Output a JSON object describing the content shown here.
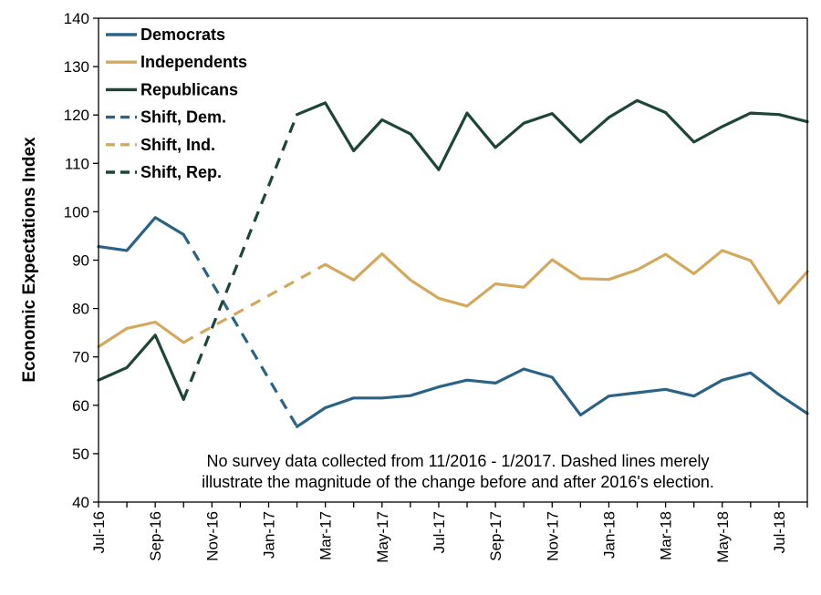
{
  "chart_data": {
    "type": "line",
    "ylabel": "Economic Expectations Index",
    "xlabel": "",
    "ylim": [
      40,
      140
    ],
    "yticks": [
      40,
      50,
      60,
      70,
      80,
      90,
      100,
      110,
      120,
      130,
      140
    ],
    "x": [
      "Jul-16",
      "Aug-16",
      "Sep-16",
      "Oct-16",
      "Nov-16",
      "Dec-16",
      "Jan-17",
      "Feb-17",
      "Mar-17",
      "Apr-17",
      "May-17",
      "Jun-17",
      "Jul-17",
      "Aug-17",
      "Sep-17",
      "Oct-17",
      "Nov-17",
      "Dec-17",
      "Jan-18",
      "Feb-18",
      "Mar-18",
      "Apr-18",
      "May-18",
      "Jun-18",
      "Jul-18",
      "Aug-18"
    ],
    "xtick_labels": [
      {
        "index": 0,
        "label": "Jul-16"
      },
      {
        "index": 2,
        "label": "Sep-16"
      },
      {
        "index": 4,
        "label": "Nov-16"
      },
      {
        "index": 6,
        "label": "Jan-17"
      },
      {
        "index": 8,
        "label": "Mar-17"
      },
      {
        "index": 10,
        "label": "May-17"
      },
      {
        "index": 12,
        "label": "Jul-17"
      },
      {
        "index": 14,
        "label": "Sep-17"
      },
      {
        "index": 16,
        "label": "Nov-17"
      },
      {
        "index": 18,
        "label": "Jan-18"
      },
      {
        "index": 20,
        "label": "Mar-18"
      },
      {
        "index": 22,
        "label": "May-18"
      },
      {
        "index": 24,
        "label": "Jul-18"
      }
    ],
    "grid": false,
    "legend_position": "top-left",
    "series": [
      {
        "name": "Democrats",
        "style": "solid",
        "color": "#2a6386",
        "values": [
          92.8,
          92.0,
          98.8,
          95.3,
          null,
          null,
          null,
          55.6,
          59.5,
          61.5,
          61.5,
          62.0,
          63.8,
          65.2,
          64.6,
          67.5,
          65.8,
          58.0,
          61.9,
          62.6,
          63.3,
          61.9,
          65.2,
          66.7,
          62.2,
          58.3
        ]
      },
      {
        "name": "Independents",
        "style": "solid",
        "color": "#d4a95e",
        "values": [
          72.1,
          75.9,
          77.2,
          73.0,
          null,
          null,
          null,
          null,
          89.1,
          85.9,
          91.3,
          85.9,
          82.1,
          80.5,
          85.1,
          84.4,
          90.1,
          86.2,
          86.0,
          88.0,
          91.2,
          87.2,
          92.0,
          89.9,
          81.1,
          87.6
        ]
      },
      {
        "name": "Republicans",
        "style": "solid",
        "color": "#1d4636",
        "values": [
          65.2,
          67.8,
          74.5,
          61.2,
          null,
          null,
          null,
          120.1,
          122.5,
          112.6,
          119.0,
          116.1,
          108.7,
          120.4,
          113.3,
          118.3,
          120.3,
          114.4,
          119.5,
          123.0,
          120.5,
          114.4,
          117.6,
          120.4,
          120.1,
          118.6
        ]
      },
      {
        "name": "Shift, Dem.",
        "style": "dashed",
        "color": "#2a6386",
        "points": [
          {
            "x": "Oct-16",
            "y": 95.3
          },
          {
            "x": "Feb-17",
            "y": 55.6
          }
        ]
      },
      {
        "name": "Shift, Ind.",
        "style": "dashed",
        "color": "#d4a95e",
        "points": [
          {
            "x": "Oct-16",
            "y": 73.0
          },
          {
            "x": "Mar-17",
            "y": 89.1
          }
        ]
      },
      {
        "name": "Shift, Rep.",
        "style": "dashed",
        "color": "#1d4636",
        "points": [
          {
            "x": "Oct-16",
            "y": 61.2
          },
          {
            "x": "Feb-17",
            "y": 120.1
          }
        ]
      }
    ],
    "annotation": [
      "No survey data collected from 11/2016 - 1/2017. Dashed lines merely",
      "illustrate the magnitude of the change before and after 2016's election."
    ]
  }
}
